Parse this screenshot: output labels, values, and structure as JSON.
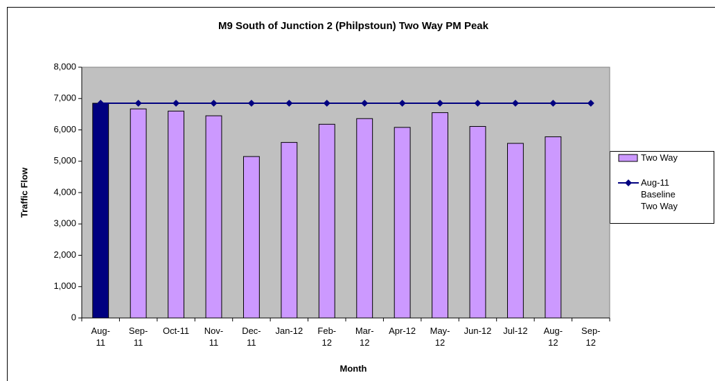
{
  "chart_data": {
    "type": "bar",
    "title": "M9 South of Junction 2 (Philpstoun) Two Way PM Peak",
    "x_label": "Month",
    "y_label": "Traffic Flow",
    "categories": [
      "Aug-11",
      "Sep-11",
      "Oct-11",
      "Nov-11",
      "Dec-11",
      "Jan-12",
      "Feb-12",
      "Mar-12",
      "Apr-12",
      "May-12",
      "Jun-12",
      "Jul-12",
      "Aug-12",
      "Sep-12"
    ],
    "series": [
      {
        "name": "Two Way",
        "type": "bar",
        "color": "#cc99ff",
        "colors": [
          "#000080",
          "#cc99ff",
          "#cc99ff",
          "#cc99ff",
          "#cc99ff",
          "#cc99ff",
          "#cc99ff",
          "#cc99ff",
          "#cc99ff",
          "#cc99ff",
          "#cc99ff",
          "#cc99ff",
          "#cc99ff",
          "#cc99ff"
        ],
        "values": [
          6850,
          6670,
          6600,
          6450,
          5150,
          5600,
          6180,
          6360,
          6080,
          6550,
          6110,
          5570,
          5780,
          null
        ]
      },
      {
        "name": "Aug-11 Baseline Two Way",
        "type": "line",
        "color": "#000080",
        "values": [
          6850,
          6850,
          6850,
          6850,
          6850,
          6850,
          6850,
          6850,
          6850,
          6850,
          6850,
          6850,
          6850,
          6850
        ]
      }
    ],
    "ylim": [
      0,
      8000
    ],
    "yticks": [
      0,
      {
        "value": 1000,
        "label": "1,000"
      },
      {
        "value": 2000,
        "label": "2,000"
      },
      {
        "value": 3000,
        "label": "3,000"
      },
      {
        "value": 4000,
        "label": "4,000"
      },
      {
        "value": 5000,
        "label": "5,000"
      },
      {
        "value": 6000,
        "label": "6,000"
      },
      {
        "value": 7000,
        "label": "7,000"
      },
      {
        "value": 8000,
        "label": "8,000"
      }
    ],
    "grid": false,
    "plot_background": "#c0c0c0",
    "legend": "right"
  }
}
